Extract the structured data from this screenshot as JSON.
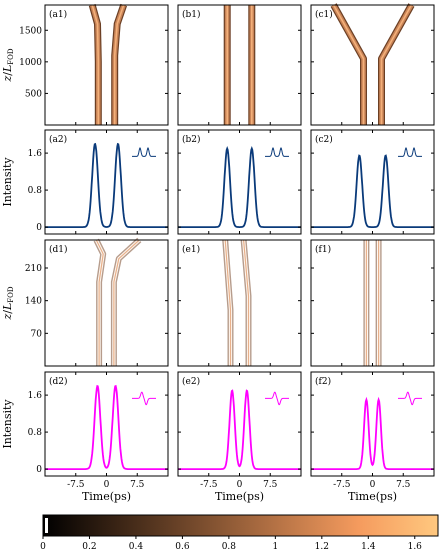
{
  "chart_data": [
    {
      "type": "heatmap",
      "panel_labels": [
        "(a1)",
        "(b1)",
        "(c1)"
      ],
      "ylabel": "z/L_FOD",
      "yticks": [
        500,
        1000,
        1500
      ],
      "ylim": [
        0,
        1900
      ],
      "xlim": [
        -15,
        15
      ],
      "tracks": [
        [
          {
            "z": 0,
            "x": -2.0
          },
          {
            "z": 1000,
            "x": -2.0
          },
          {
            "z": 1600,
            "x": -2.2
          },
          {
            "z": 1900,
            "x": -3.5
          }
        ],
        [
          {
            "z": 0,
            "x": 2.0
          },
          {
            "z": 1100,
            "x": 2.0
          },
          {
            "z": 1600,
            "x": 2.6
          },
          {
            "z": 1900,
            "x": 4.2
          }
        ],
        [
          {
            "z": 0,
            "x": -3.0
          },
          {
            "z": 1900,
            "x": -3.0
          }
        ],
        [
          {
            "z": 0,
            "x": 3.0
          },
          {
            "z": 1900,
            "x": 3.0
          }
        ],
        [
          {
            "z": 0,
            "x": -2.2
          },
          {
            "z": 1050,
            "x": -2.2
          },
          {
            "z": 1900,
            "x": -9.5
          }
        ],
        [
          {
            "z": 0,
            "x": 2.2
          },
          {
            "z": 1050,
            "x": 2.2
          },
          {
            "z": 1900,
            "x": 9.5
          }
        ]
      ]
    },
    {
      "type": "line",
      "panel_labels": [
        "(a2)",
        "(b2)",
        "(c2)"
      ],
      "ylabel": "Intensity",
      "yticks": [
        0,
        0.8,
        1.6
      ],
      "ylim": [
        -0.15,
        2.1
      ],
      "xlim": [
        -15,
        15
      ],
      "color": "#0a3a7a",
      "peaks": [
        {
          "centers": [
            -2.8,
            2.8
          ],
          "height": 1.8,
          "width": 1.0
        },
        {
          "centers": [
            -3.0,
            3.0
          ],
          "height": 1.7,
          "width": 0.95
        },
        {
          "centers": [
            -3.2,
            3.2
          ],
          "height": 1.55,
          "width": 0.95
        }
      ]
    },
    {
      "type": "heatmap",
      "panel_labels": [
        "(d1)",
        "(e1)",
        "(f1)"
      ],
      "ylabel": "z/L_FOD",
      "yticks": [
        70,
        140,
        210
      ],
      "ylim": [
        0,
        270
      ],
      "xlim": [
        -15,
        15
      ],
      "tracks": [
        [
          {
            "z": 0,
            "x": -1.8
          },
          {
            "z": 180,
            "x": -1.8
          },
          {
            "z": 240,
            "x": -0.8
          },
          {
            "z": 270,
            "x": -2.5
          }
        ],
        [
          {
            "z": 0,
            "x": 1.8
          },
          {
            "z": 180,
            "x": 1.8
          },
          {
            "z": 230,
            "x": 3.0
          },
          {
            "z": 270,
            "x": 8.0
          }
        ],
        [
          {
            "z": 0,
            "x": -2.2
          },
          {
            "z": 120,
            "x": -2.2
          },
          {
            "z": 270,
            "x": -3.5
          }
        ],
        [
          {
            "z": 0,
            "x": 2.2
          },
          {
            "z": 150,
            "x": 2.2
          },
          {
            "z": 270,
            "x": 1.0
          }
        ],
        [
          {
            "z": 0,
            "x": -1.5
          },
          {
            "z": 270,
            "x": -1.5
          }
        ],
        [
          {
            "z": 0,
            "x": 1.5
          },
          {
            "z": 270,
            "x": 1.5
          }
        ]
      ]
    },
    {
      "type": "line",
      "panel_labels": [
        "(d2)",
        "(e2)",
        "(f2)"
      ],
      "ylabel": "Intensity",
      "xlabel": "Time(ps)",
      "xticks": [
        -7.5,
        0,
        7.5
      ],
      "yticks": [
        0,
        0.8,
        1.6
      ],
      "ylim": [
        -0.15,
        2.1
      ],
      "xlim": [
        -15,
        15
      ],
      "color": "#ff00ff",
      "peaks": [
        {
          "centers": [
            -2.2,
            2.2
          ],
          "height": 1.8,
          "width": 1.0
        },
        {
          "centers": [
            -1.8,
            1.8
          ],
          "height": 1.7,
          "width": 0.9
        },
        {
          "centers": [
            -1.5,
            1.5
          ],
          "height": 1.5,
          "width": 0.8
        }
      ]
    },
    {
      "type": "heatmap",
      "colorbar": {
        "ticks": [
          "0",
          "0.2",
          "0.4",
          "0.6",
          "0.8",
          "1",
          "1.2",
          "1.4",
          "1.6"
        ],
        "min": 0,
        "max": 1.7,
        "colors": [
          "#000000",
          "#3d2616",
          "#7a4d2e",
          "#b87446",
          "#f59b5e",
          "#ffc87f"
        ]
      }
    }
  ]
}
